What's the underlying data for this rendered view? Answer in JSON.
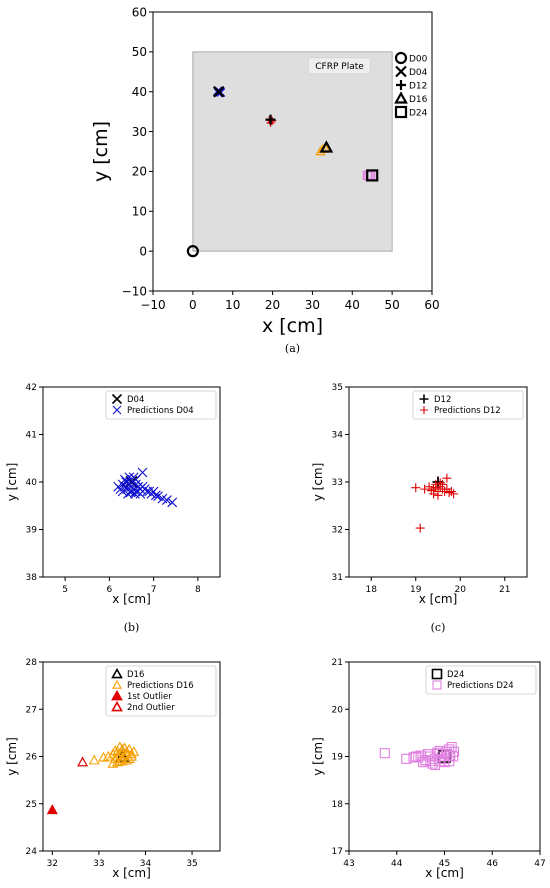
{
  "chart_data": [
    {
      "id": "a",
      "caption": "(a)",
      "type": "scatter",
      "xlabel": "x [cm]",
      "ylabel": "y [cm]",
      "xlim": [
        -10,
        60
      ],
      "ylim": [
        -10,
        60
      ],
      "xticks": [
        "−10",
        "0",
        "10",
        "20",
        "30",
        "40",
        "50",
        "60"
      ],
      "yticks": [
        "−10",
        "0",
        "10",
        "20",
        "30",
        "40",
        "50",
        "60"
      ],
      "grid": false,
      "legend_placement": "outside-right",
      "plate": {
        "label": "CFRP Plate",
        "x": [
          0,
          50
        ],
        "y": [
          0,
          50
        ],
        "color": "#dedede"
      },
      "series": [
        {
          "name": "D00",
          "marker": "circle",
          "x": [
            0
          ],
          "y": [
            0
          ]
        },
        {
          "name": "D04",
          "marker": "x",
          "x": [
            6.5
          ],
          "y": [
            40
          ]
        },
        {
          "name": "D12",
          "marker": "plus",
          "x": [
            19.5
          ],
          "y": [
            33
          ]
        },
        {
          "name": "D16",
          "marker": "triangle",
          "x": [
            33.5
          ],
          "y": [
            26
          ]
        },
        {
          "name": "D24",
          "marker": "square",
          "x": [
            45
          ],
          "y": [
            19
          ]
        }
      ],
      "prediction_clusters": [
        {
          "marker": "x",
          "color": "#1010d0",
          "x": [
            6.2,
            6.5,
            6.8,
            6.4,
            7.0,
            6.3
          ],
          "y": [
            40.1,
            39.9,
            40.0,
            39.7,
            39.8,
            40.2
          ]
        },
        {
          "marker": "plus",
          "color": "#e00000",
          "x": [
            19.2,
            19.6,
            19.9,
            19.5
          ],
          "y": [
            32.9,
            32.8,
            32.7,
            32.2
          ]
        },
        {
          "marker": "triangle",
          "color": "#f5a000",
          "x": [
            32.0,
            32.6,
            33.2
          ],
          "y": [
            25.0,
            25.6,
            25.9
          ]
        },
        {
          "marker": "square",
          "color": "#e080e0",
          "x": [
            43.8,
            44.2,
            44.6
          ],
          "y": [
            19.0,
            18.9,
            19.1
          ]
        }
      ]
    },
    {
      "id": "b",
      "caption": "(b)",
      "type": "scatter",
      "xlabel": "x [cm]",
      "ylabel": "y [cm]",
      "xlim": [
        4.5,
        8.5
      ],
      "ylim": [
        38,
        42
      ],
      "xticks": [
        5,
        6,
        7,
        8
      ],
      "yticks": [
        38,
        39,
        40,
        41,
        42
      ],
      "grid": false,
      "legend_placement": "top-right",
      "series": [
        {
          "name": "D04",
          "marker": "x",
          "color": "#000000",
          "x": [
            6.5
          ],
          "y": [
            40.0
          ]
        },
        {
          "name": "Predictions D04",
          "marker": "x",
          "color": "#1010d0",
          "x": [
            6.2,
            6.25,
            6.3,
            6.3,
            6.35,
            6.4,
            6.4,
            6.45,
            6.5,
            6.5,
            6.55,
            6.6,
            6.6,
            6.65,
            6.7,
            6.7,
            6.75,
            6.8,
            6.85,
            6.9,
            6.95,
            7.0,
            7.05,
            7.1,
            7.2,
            7.3,
            7.42,
            6.75,
            6.45,
            6.35,
            6.55,
            6.6,
            6.42,
            6.48,
            6.58,
            6.38
          ],
          "y": [
            39.9,
            39.85,
            39.95,
            39.8,
            39.9,
            40.0,
            39.85,
            39.95,
            39.9,
            39.8,
            39.85,
            39.95,
            39.8,
            39.9,
            39.85,
            39.75,
            39.9,
            39.85,
            39.8,
            39.8,
            39.75,
            39.8,
            39.72,
            39.7,
            39.65,
            39.62,
            39.57,
            40.2,
            40.1,
            40.05,
            40.1,
            40.05,
            39.75,
            39.78,
            39.75,
            40.0
          ]
        }
      ]
    },
    {
      "id": "c",
      "caption": "(c)",
      "type": "scatter",
      "xlabel": "x [cm]",
      "ylabel": "y [cm]",
      "xlim": [
        17.5,
        21.5
      ],
      "ylim": [
        31,
        35
      ],
      "xticks": [
        18,
        19,
        20,
        21
      ],
      "yticks": [
        31,
        32,
        33,
        34,
        35
      ],
      "grid": false,
      "legend_placement": "top-right",
      "series": [
        {
          "name": "D12",
          "marker": "plus",
          "color": "#000000",
          "x": [
            19.5
          ],
          "y": [
            33.0
          ]
        },
        {
          "name": "Predictions D12",
          "marker": "plus",
          "color": "#e00000",
          "x": [
            19.0,
            19.2,
            19.3,
            19.4,
            19.45,
            19.5,
            19.55,
            19.6,
            19.6,
            19.65,
            19.7,
            19.75,
            19.8,
            19.85,
            19.5,
            19.4,
            19.55,
            19.7,
            19.1,
            19.45,
            19.35
          ],
          "y": [
            32.88,
            32.85,
            32.9,
            32.85,
            32.95,
            32.8,
            32.9,
            32.85,
            32.95,
            32.8,
            32.85,
            32.78,
            32.8,
            32.75,
            32.72,
            32.75,
            32.98,
            33.08,
            32.03,
            32.88,
            32.82
          ]
        }
      ]
    },
    {
      "id": "d",
      "caption": "",
      "type": "scatter",
      "xlabel": "x [cm]",
      "ylabel": "y [cm]",
      "xlim": [
        31.8,
        35.6
      ],
      "ylim": [
        24,
        28
      ],
      "xticks": [
        32,
        33,
        34,
        35
      ],
      "yticks": [
        24,
        25,
        26,
        27,
        28
      ],
      "grid": false,
      "legend_placement": "top-right",
      "series": [
        {
          "name": "D16",
          "marker": "triangle",
          "color": "#000000",
          "fill": "none",
          "x": [
            33.5
          ],
          "y": [
            26.0
          ]
        },
        {
          "name": "Predictions D16",
          "marker": "triangle",
          "color": "#f5a000",
          "fill": "none",
          "x": [
            32.9,
            33.1,
            33.2,
            33.3,
            33.35,
            33.4,
            33.45,
            33.5,
            33.55,
            33.6,
            33.65,
            33.7,
            33.75,
            33.3,
            33.4,
            33.5,
            33.6,
            33.7,
            33.45,
            33.55,
            33.35,
            33.65,
            33.5,
            33.4,
            33.6
          ],
          "y": [
            25.92,
            25.98,
            26.0,
            26.05,
            25.95,
            26.1,
            25.9,
            26.15,
            26.0,
            26.1,
            25.95,
            26.05,
            26.1,
            25.85,
            25.88,
            25.9,
            25.92,
            26.0,
            26.2,
            26.18,
            26.12,
            26.15,
            25.95,
            26.0,
            26.05
          ]
        },
        {
          "name": "1st Outlier",
          "marker": "triangle",
          "color": "#e00000",
          "fill": "#e00000",
          "x": [
            32.0
          ],
          "y": [
            24.87
          ]
        },
        {
          "name": "2nd Outlier",
          "marker": "triangle",
          "color": "#e00000",
          "fill": "none",
          "x": [
            32.65
          ],
          "y": [
            25.88
          ]
        }
      ]
    },
    {
      "id": "e",
      "caption": "",
      "type": "scatter",
      "xlabel": "x [cm]",
      "ylabel": "y [cm]",
      "xlim": [
        43,
        47
      ],
      "ylim": [
        17,
        21
      ],
      "xticks": [
        43,
        44,
        45,
        46,
        47
      ],
      "yticks": [
        17,
        18,
        19,
        20,
        21
      ],
      "grid": false,
      "legend_placement": "top-right",
      "series": [
        {
          "name": "D24",
          "marker": "square",
          "color": "#000000",
          "x": [
            45.0
          ],
          "y": [
            19.0
          ]
        },
        {
          "name": "Predictions D24",
          "marker": "square",
          "color": "#e080e0",
          "x": [
            43.75,
            44.2,
            44.35,
            44.5,
            44.6,
            44.7,
            44.75,
            44.8,
            44.85,
            44.9,
            44.95,
            45.0,
            45.05,
            45.1,
            45.15,
            45.2,
            44.4,
            44.55,
            44.65,
            44.8,
            44.9,
            45.0,
            45.1,
            45.18,
            44.7,
            44.85,
            45.05,
            45.12,
            44.45,
            44.6
          ],
          "y": [
            19.07,
            18.95,
            18.98,
            19.02,
            18.92,
            19.0,
            18.85,
            18.95,
            19.05,
            18.9,
            19.0,
            18.88,
            19.05,
            19.15,
            19.2,
            19.1,
            19.0,
            18.88,
            19.05,
            18.82,
            19.12,
            18.95,
            18.9,
            19.0,
            18.9,
            19.08,
            19.1,
            19.02,
            18.98,
            18.92
          ]
        }
      ]
    }
  ]
}
